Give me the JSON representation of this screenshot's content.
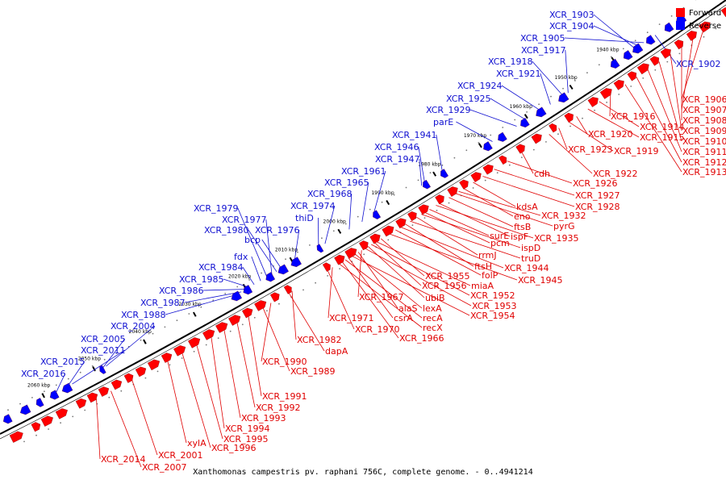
{
  "caption": "Xanthomonas campestris pv. raphani 756C, complete genome. - 0..4941214",
  "legend": [
    {
      "label": "Forward",
      "color": "#ff0000"
    },
    {
      "label": "Reverse",
      "color": "#0000ff"
    }
  ],
  "colors": {
    "forward": "#ff0000",
    "reverse": "#0000ff",
    "forward_line": "#e00000",
    "reverse_line": "#1010d0"
  },
  "kbp_ticks": [
    "1940 kbp",
    "1950 kbp",
    "1960 kbp",
    "1970 kbp",
    "1980 kbp",
    "1990 kbp",
    "2000 kbp",
    "2010 kbp",
    "2020 kbp",
    "2030 kbp",
    "2040 kbp",
    "2050 kbp",
    "2060 kbp"
  ],
  "reverse_labels": [
    "XCR_1903",
    "XCR_1904",
    "XCR_1905",
    "XCR_1917",
    "XCR_1918",
    "XCR_1921",
    "XCR_1924",
    "XCR_1925",
    "XCR_1929",
    "parE",
    "XCR_1941",
    "XCR_1946",
    "XCR_1947",
    "XCR_1961",
    "XCR_1965",
    "XCR_1968",
    "XCR_1974",
    "thiD",
    "XCR_1976",
    "XCR_1979",
    "XCR_1977",
    "XCR_1980",
    "bcp",
    "fdx",
    "XCR_1984",
    "XCR_1985",
    "XCR_1986",
    "XCR_1987",
    "XCR_1988",
    "XCR_2004",
    "XCR_2005",
    "XCR_2011",
    "XCR_2015",
    "XCR_2016",
    "XCR_1902"
  ],
  "forward_labels": [
    "XCR_1906",
    "XCR_1907",
    "XCR_1908",
    "XCR_1909",
    "XCR_1910",
    "XCR_1911",
    "XCR_1912",
    "XCR_1913",
    "XCR_1916",
    "XCR_1914",
    "XCR_1915",
    "XCR_1920",
    "XCR_1919",
    "XCR_1923",
    "XCR_1922",
    "cdh",
    "XCR_1926",
    "XCR_1927",
    "XCR_1928",
    "kdsA",
    "eno",
    "XCR_1932",
    "pyrG",
    "ftsB",
    "ispF",
    "XCR_1935",
    "surE",
    "pcm",
    "ispD",
    "rrmJ",
    "truD",
    "ftsH",
    "XCR_1944",
    "folP",
    "XCR_1945",
    "XCR_1955",
    "miaA",
    "XCR_1956",
    "XCR_1952",
    "ubiB",
    "XCR_1953",
    "XCR_1967",
    "alaS",
    "lexA",
    "XCR_1954",
    "csrA",
    "recA",
    "XCR_1971",
    "XCR_1970",
    "recX",
    "XCR_1966",
    "XCR_1982",
    "dapA",
    "XCR_1990",
    "XCR_1989",
    "XCR_1991",
    "XCR_1992",
    "XCR_1993",
    "XCR_1994",
    "XCR_1995",
    "XCR_1996",
    "xylA",
    "XCR_2001",
    "XCR_2014",
    "XCR_2007"
  ]
}
